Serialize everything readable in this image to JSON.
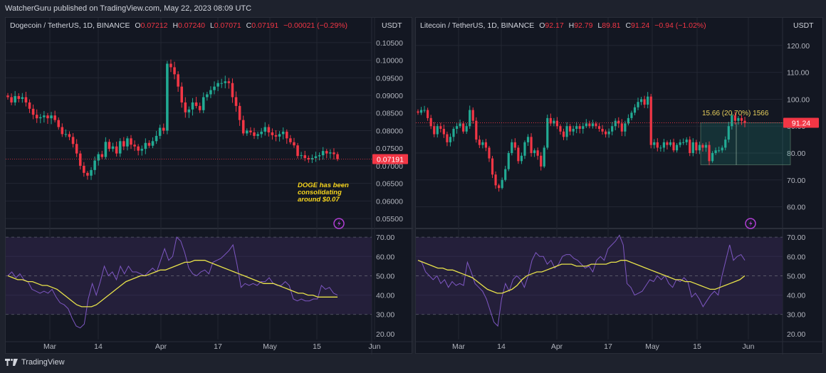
{
  "header": {
    "published": "WatcherGuru published on TradingView.com, May 22, 2023 08:09 UTC"
  },
  "footer": {
    "brand": "TradingView",
    "logo_icon": "tradingview-logo-icon"
  },
  "colors": {
    "up": "#22ab94",
    "down": "#f23645",
    "rsi": "#7e57c2",
    "rsi_ma": "#e9e34a",
    "bg": "#131722",
    "frame": "#1e222d",
    "grid": "#232733",
    "rsi_band": "#241f3a"
  },
  "charts": {
    "doge": {
      "symbol": "Dogecoin / TetherUS, 1D, BINANCE",
      "o_label": "O",
      "o": "0.07212",
      "h_label": "H",
      "h": "0.07240",
      "l_label": "L",
      "l": "0.07071",
      "c_label": "C",
      "c": "0.07191",
      "change": "−0.00021 (−0.29%)",
      "currency": "USDT",
      "last_price": "0.07191",
      "annotation": [
        "DOGE has been",
        "consolidating",
        "around $0.07"
      ],
      "price_ticks": [
        "0.10500",
        "0.10000",
        "0.09500",
        "0.09000",
        "0.08500",
        "0.08000",
        "0.07500",
        "0.07000",
        "0.06500",
        "0.06000",
        "0.05500"
      ],
      "rsi_ticks": [
        "70.00",
        "60.00",
        "50.00",
        "40.00",
        "30.00",
        "20.00"
      ],
      "time_ticks": [
        "Mar",
        "14",
        "Apr",
        "17",
        "May",
        "15",
        "Jun"
      ],
      "icon": "lightning-icon"
    },
    "ltc": {
      "symbol": "Litecoin / TetherUS, 1D, BINANCE",
      "o_label": "O",
      "o": "92.17",
      "h_label": "H",
      "h": "92.79",
      "l_label": "L",
      "l": "89.81",
      "c_label": "C",
      "c": "91.24",
      "change": "−0.94 (−1.02%)",
      "currency": "USDT",
      "last_price": "91.24",
      "measure": "15.66 (20.70%) 1566",
      "price_ticks": [
        "120.00",
        "110.00",
        "100.00",
        "90.00",
        "80.00",
        "70.00",
        "60.00"
      ],
      "rsi_ticks": [
        "70.00",
        "60.00",
        "50.00",
        "40.00",
        "30.00",
        "20.00"
      ],
      "time_ticks": [
        "Mar",
        "14",
        "Apr",
        "17",
        "May",
        "15",
        "Jun"
      ],
      "icon": "lightning-icon"
    }
  },
  "chart_data": [
    {
      "type": "candlestick",
      "title": "Dogecoin / TetherUS, 1D, BINANCE",
      "ylabel": "USDT",
      "ylim": [
        0.053,
        0.108
      ],
      "x_ticks": [
        "Mar",
        "14",
        "Apr",
        "17",
        "May",
        "15",
        "Jun"
      ],
      "last_price": 0.07191,
      "closes": [
        0.0895,
        0.088,
        0.0898,
        0.089,
        0.0895,
        0.088,
        0.0862,
        0.0845,
        0.0835,
        0.0838,
        0.0843,
        0.0835,
        0.0843,
        0.083,
        0.081,
        0.079,
        0.079,
        0.0782,
        0.0762,
        0.0735,
        0.07,
        0.068,
        0.0672,
        0.0688,
        0.0715,
        0.0733,
        0.0725,
        0.0768,
        0.0748,
        0.0755,
        0.0735,
        0.077,
        0.0755,
        0.0778,
        0.076,
        0.0755,
        0.0743,
        0.0748,
        0.0765,
        0.0757,
        0.077,
        0.0785,
        0.0808,
        0.08,
        0.099,
        0.098,
        0.096,
        0.0925,
        0.088,
        0.0852,
        0.086,
        0.088,
        0.087,
        0.0858,
        0.0895,
        0.0903,
        0.0915,
        0.0925,
        0.0935,
        0.0935,
        0.094,
        0.0935,
        0.0895,
        0.087,
        0.083,
        0.0792,
        0.08,
        0.0795,
        0.0785,
        0.079,
        0.0797,
        0.081,
        0.0795,
        0.0787,
        0.0783,
        0.079,
        0.0797,
        0.0778,
        0.0767,
        0.0758,
        0.0728,
        0.073,
        0.0722,
        0.0718,
        0.0722,
        0.0727,
        0.073,
        0.0742,
        0.0735,
        0.0738,
        0.0733,
        0.0719
      ],
      "rsi": [
        50,
        52,
        49,
        51,
        48,
        47,
        43,
        42,
        41,
        42,
        41,
        43,
        39,
        36,
        35,
        33,
        28,
        24,
        23,
        25,
        38,
        46,
        40,
        47,
        55,
        50,
        52,
        48,
        55,
        51,
        55,
        52,
        52,
        51,
        50,
        52,
        54,
        52,
        58,
        64,
        58,
        60,
        70,
        68,
        62,
        54,
        51,
        50,
        52,
        53,
        51,
        57,
        58,
        59,
        61,
        63,
        66,
        56,
        44,
        46,
        45,
        46,
        45,
        47,
        47,
        49,
        46,
        45,
        45,
        47,
        45,
        38,
        37,
        38,
        37,
        37,
        38,
        38,
        45,
        43,
        44,
        41,
        40
      ],
      "rsi_ma": [
        50,
        49,
        48,
        48,
        47,
        47,
        46,
        45,
        45,
        44,
        43,
        41,
        39,
        37,
        35,
        34,
        34,
        34,
        35,
        37,
        39,
        41,
        43,
        45,
        47,
        48,
        49,
        50,
        50,
        51,
        52,
        53,
        53,
        54,
        55,
        56,
        57,
        57,
        58,
        58,
        58,
        57,
        56,
        55,
        54,
        53,
        52,
        51,
        50,
        49,
        48,
        47,
        46,
        46,
        46,
        45,
        44,
        43,
        42,
        41,
        41,
        40,
        40,
        39,
        39,
        39,
        39,
        39
      ],
      "rsi_levels": [
        70,
        50,
        30
      ],
      "rsi_ylim": [
        17,
        73
      ]
    },
    {
      "type": "candlestick",
      "title": "Litecoin / TetherUS, 1D, BINANCE",
      "ylabel": "USDT",
      "ylim": [
        53,
        125
      ],
      "x_ticks": [
        "Mar",
        "14",
        "Apr",
        "17",
        "May",
        "15",
        "Jun"
      ],
      "last_price": 91.24,
      "closes": [
        95,
        96,
        96,
        93,
        90,
        87,
        90,
        89,
        87,
        84,
        86,
        89,
        90,
        91,
        88,
        90,
        96,
        92,
        85,
        83,
        84,
        82,
        78,
        72,
        68,
        67,
        70,
        74,
        80,
        84,
        82,
        77,
        79,
        84,
        86,
        80,
        81,
        79,
        75,
        82,
        93,
        91,
        92,
        90,
        88,
        86,
        90,
        88,
        89,
        90,
        89,
        90,
        91,
        90,
        91,
        90,
        89,
        88,
        87,
        88,
        90,
        92,
        91,
        88,
        91,
        93,
        95,
        97,
        99,
        100,
        98,
        101,
        83,
        84,
        82,
        82,
        84,
        83,
        84,
        81,
        83,
        84,
        84,
        85,
        80,
        84,
        81,
        83,
        82,
        83,
        77,
        80,
        81,
        81,
        82,
        85,
        90,
        94,
        92,
        93,
        92,
        91.24
      ],
      "measure": {
        "text": "15.66 (20.70%) 1566",
        "from": 75.6,
        "to": 91.24,
        "percent": 20.7,
        "bars": 1566
      },
      "rsi": [
        58,
        57,
        52,
        50,
        48,
        50,
        46,
        48,
        44,
        47,
        45,
        46,
        45,
        57,
        52,
        46,
        44,
        42,
        38,
        32,
        26,
        24,
        38,
        46,
        42,
        48,
        50,
        48,
        44,
        50,
        58,
        62,
        60,
        60,
        56,
        58,
        54,
        56,
        60,
        61,
        61,
        59,
        58,
        56,
        54,
        55,
        52,
        58,
        60,
        58,
        64,
        66,
        68,
        71,
        66,
        46,
        44,
        40,
        41,
        42,
        45,
        48,
        47,
        50,
        48,
        50,
        46,
        44,
        48,
        47,
        49,
        47,
        39,
        41,
        38,
        34,
        37,
        40,
        42,
        40,
        50,
        58,
        66,
        58,
        60,
        61,
        58
      ],
      "rsi_ma": [
        58,
        57,
        56,
        55,
        54,
        54,
        53,
        53,
        52,
        51,
        50,
        49,
        47,
        45,
        43,
        42,
        41,
        41,
        42,
        43,
        45,
        48,
        50,
        51,
        52,
        52,
        53,
        54,
        55,
        56,
        56,
        56,
        55,
        55,
        55,
        56,
        56,
        56,
        56,
        57,
        57,
        58,
        58,
        57,
        56,
        55,
        54,
        53,
        52,
        51,
        50,
        49,
        48,
        48,
        47,
        47,
        46,
        45,
        44,
        43,
        43,
        44,
        45,
        46,
        47,
        48,
        50
      ]
    }
  ]
}
